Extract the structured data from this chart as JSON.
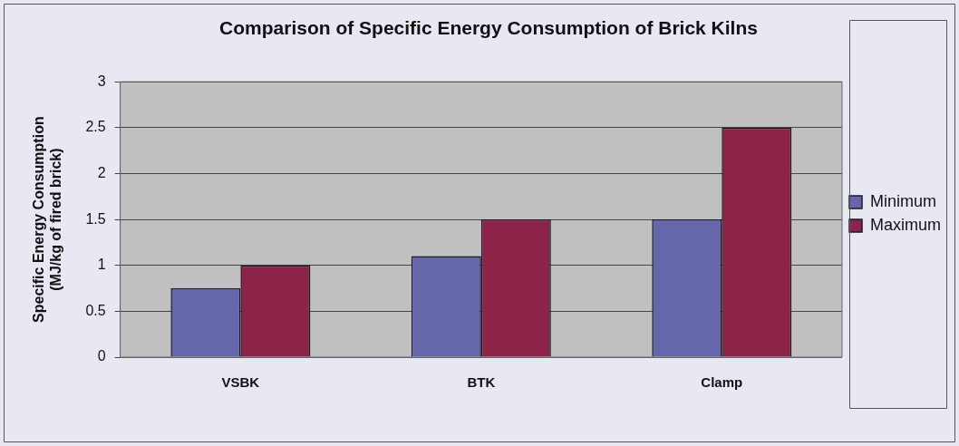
{
  "chart_data": {
    "type": "bar",
    "title": "Comparison of Specific Energy Consumption of Brick Kilns",
    "ylabel": "Specific Energy Consumption (MJ/kg of fired brick)",
    "categories": [
      "VSBK",
      "BTK",
      "Clamp"
    ],
    "series": [
      {
        "name": "Minimum",
        "color": "#6666aa",
        "values": [
          0.75,
          1.1,
          1.5
        ]
      },
      {
        "name": "Maximum",
        "color": "#8b2448",
        "values": [
          1.0,
          1.5,
          2.5
        ]
      }
    ],
    "ylim": [
      0,
      3
    ],
    "yticks": [
      0,
      0.5,
      1,
      1.5,
      2,
      2.5,
      3
    ],
    "grid": "y",
    "legend": "right"
  }
}
